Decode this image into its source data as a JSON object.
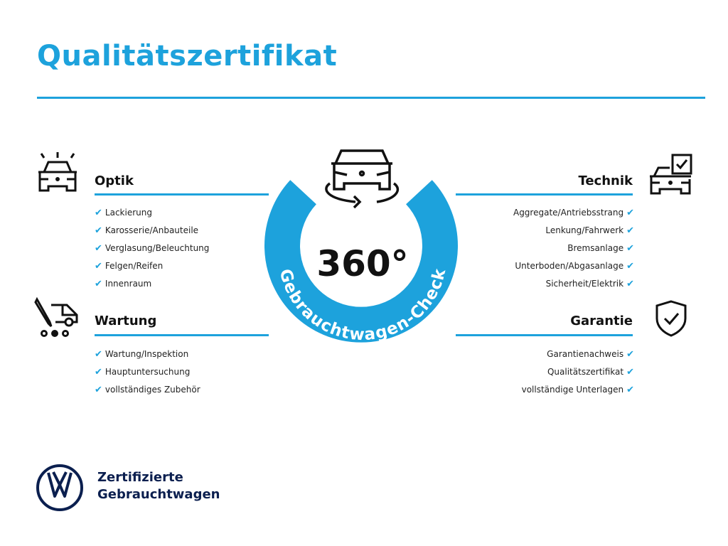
{
  "title": "Qualitätszertifikat",
  "colors": {
    "accent": "#1da2dc",
    "brand_navy": "#0b1f4f"
  },
  "center": {
    "number": "360°",
    "arc_text": "Gebrauchtwagen-Check",
    "icon": "car-rotate-icon"
  },
  "sections": {
    "optik": {
      "heading": "Optik",
      "icon": "car-lights-icon",
      "items": [
        "Lackierung",
        "Karosserie/Anbauteile",
        "Verglasung/Beleuchtung",
        "Felgen/Reifen",
        "Innenraum"
      ]
    },
    "wartung": {
      "heading": "Wartung",
      "icon": "service-van-icon",
      "items": [
        "Wartung/Inspektion",
        "Hauptuntersuchung",
        "vollständiges Zubehör"
      ]
    },
    "technik": {
      "heading": "Technik",
      "icon": "car-checklist-icon",
      "items": [
        "Aggregate/Antriebsstrang",
        "Lenkung/Fahrwerk",
        "Bremsanlage",
        "Unterboden/Abgasanlage",
        "Sicherheit/Elektrik"
      ]
    },
    "garantie": {
      "heading": "Garantie",
      "icon": "shield-check-icon",
      "items": [
        "Garantienachweis",
        "Qualitätszertifikat",
        "vollständige Unterlagen"
      ]
    }
  },
  "footer": {
    "line1": "Zertifizierte",
    "line2": "Gebrauchtwagen",
    "logo": "VW"
  },
  "check_glyph": "✔"
}
